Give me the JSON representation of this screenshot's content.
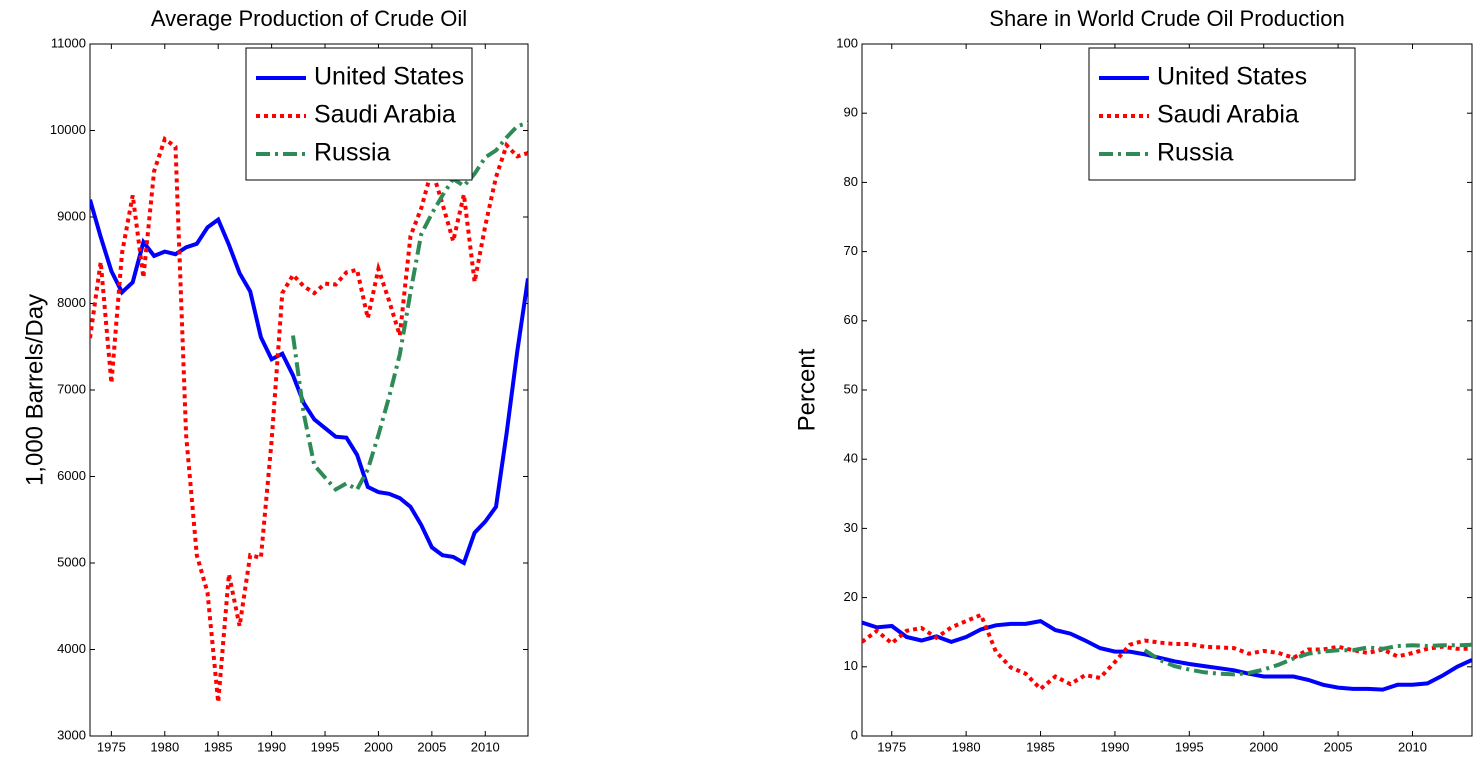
{
  "chart_data": [
    {
      "type": "line",
      "title": "Average Production of Crude Oil",
      "ylabel": "1,000 Barrels/Day",
      "x": [
        1973,
        1974,
        1975,
        1976,
        1977,
        1978,
        1979,
        1980,
        1981,
        1982,
        1983,
        1984,
        1985,
        1986,
        1987,
        1988,
        1989,
        1990,
        1991,
        1992,
        1993,
        1994,
        1995,
        1996,
        1997,
        1998,
        1999,
        2000,
        2001,
        2002,
        2003,
        2004,
        2005,
        2006,
        2007,
        2008,
        2009,
        2010,
        2011,
        2012,
        2013,
        2014
      ],
      "series": [
        {
          "name": "United States",
          "color": "#0000ff",
          "style": "solid",
          "values": [
            9200,
            8770,
            8375,
            8130,
            8245,
            8710,
            8550,
            8600,
            8570,
            8650,
            8690,
            8880,
            8970,
            8680,
            8350,
            8140,
            7610,
            7355,
            7420,
            7170,
            6850,
            6660,
            6560,
            6460,
            6450,
            6250,
            5880,
            5820,
            5800,
            5750,
            5650,
            5440,
            5180,
            5090,
            5070,
            5000,
            5350,
            5480,
            5650,
            6500,
            7450,
            8290
          ]
        },
        {
          "name": "Saudi Arabia",
          "color": "#ff0000",
          "style": "dotted",
          "values": [
            7600,
            8480,
            7080,
            8580,
            9250,
            8300,
            9530,
            9900,
            9810,
            6480,
            5090,
            4660,
            3390,
            4870,
            4270,
            5090,
            5060,
            6410,
            8120,
            8330,
            8200,
            8120,
            8230,
            8220,
            8360,
            8390,
            7830,
            8400,
            8030,
            7630,
            8780,
            9100,
            9550,
            9150,
            8720,
            9260,
            8250,
            8900,
            9460,
            9830,
            9700,
            9740
          ]
        },
        {
          "name": "Russia",
          "color": "#2e8b57",
          "style": "dashdot",
          "values": [
            null,
            null,
            null,
            null,
            null,
            null,
            null,
            null,
            null,
            null,
            null,
            null,
            null,
            null,
            null,
            null,
            null,
            null,
            null,
            7630,
            6730,
            6130,
            5990,
            5850,
            5920,
            5850,
            6080,
            6480,
            6920,
            7410,
            8130,
            8800,
            9040,
            9250,
            9440,
            9360,
            9500,
            9690,
            9770,
            9920,
            10050,
            10090
          ]
        }
      ],
      "xlim": [
        1973,
        2014
      ],
      "xticks": [
        1975,
        1980,
        1985,
        1990,
        1995,
        2000,
        2005,
        2010
      ],
      "ylim": [
        3000,
        11000
      ],
      "yticks": [
        3000,
        4000,
        5000,
        6000,
        7000,
        8000,
        9000,
        10000,
        11000
      ],
      "legend": "north"
    },
    {
      "type": "line",
      "title": "Share in World Crude Oil Production",
      "ylabel": "Percent",
      "x": [
        1973,
        1974,
        1975,
        1976,
        1977,
        1978,
        1979,
        1980,
        1981,
        1982,
        1983,
        1984,
        1985,
        1986,
        1987,
        1988,
        1989,
        1990,
        1991,
        1992,
        1993,
        1994,
        1995,
        1996,
        1997,
        1998,
        1999,
        2000,
        2001,
        2002,
        2003,
        2004,
        2005,
        2006,
        2007,
        2008,
        2009,
        2010,
        2011,
        2012,
        2013,
        2014
      ],
      "series": [
        {
          "name": "United States",
          "color": "#0000ff",
          "style": "solid",
          "values": [
            16.4,
            15.7,
            15.9,
            14.3,
            13.8,
            14.4,
            13.6,
            14.3,
            15.4,
            16.0,
            16.2,
            16.2,
            16.6,
            15.3,
            14.8,
            13.8,
            12.7,
            12.2,
            12.2,
            11.8,
            11.3,
            10.8,
            10.4,
            10.1,
            9.8,
            9.5,
            9.0,
            8.6,
            8.6,
            8.6,
            8.1,
            7.4,
            7.0,
            6.8,
            6.8,
            6.7,
            7.4,
            7.4,
            7.6,
            8.7,
            10.0,
            11.0
          ]
        },
        {
          "name": "Saudi Arabia",
          "color": "#ff0000",
          "style": "dotted",
          "values": [
            13.6,
            15.2,
            13.4,
            15.2,
            15.6,
            14.2,
            15.7,
            16.6,
            17.5,
            12.2,
            9.9,
            9.0,
            6.8,
            8.6,
            7.5,
            8.8,
            8.4,
            10.7,
            13.2,
            13.8,
            13.5,
            13.3,
            13.3,
            12.9,
            12.8,
            12.7,
            11.9,
            12.3,
            12.0,
            11.3,
            12.5,
            12.5,
            12.9,
            12.4,
            12.0,
            12.5,
            11.5,
            12.0,
            12.6,
            12.9,
            12.6,
            12.6
          ]
        },
        {
          "name": "Russia",
          "color": "#2e8b57",
          "style": "dashdot",
          "values": [
            null,
            null,
            null,
            null,
            null,
            null,
            null,
            null,
            null,
            null,
            null,
            null,
            null,
            null,
            null,
            null,
            null,
            null,
            null,
            12.4,
            11.0,
            10.1,
            9.6,
            9.2,
            9.0,
            8.9,
            9.1,
            9.6,
            10.3,
            11.2,
            11.9,
            12.2,
            12.4,
            12.4,
            12.8,
            12.6,
            13.0,
            13.1,
            13.0,
            13.1,
            13.1,
            13.2
          ]
        }
      ],
      "xlim": [
        1973,
        2014
      ],
      "xticks": [
        1975,
        1980,
        1985,
        1990,
        1995,
        2000,
        2005,
        2010
      ],
      "ylim": [
        0,
        100
      ],
      "yticks": [
        0,
        10,
        20,
        30,
        40,
        50,
        60,
        70,
        80,
        90,
        100
      ],
      "legend": "north"
    }
  ]
}
